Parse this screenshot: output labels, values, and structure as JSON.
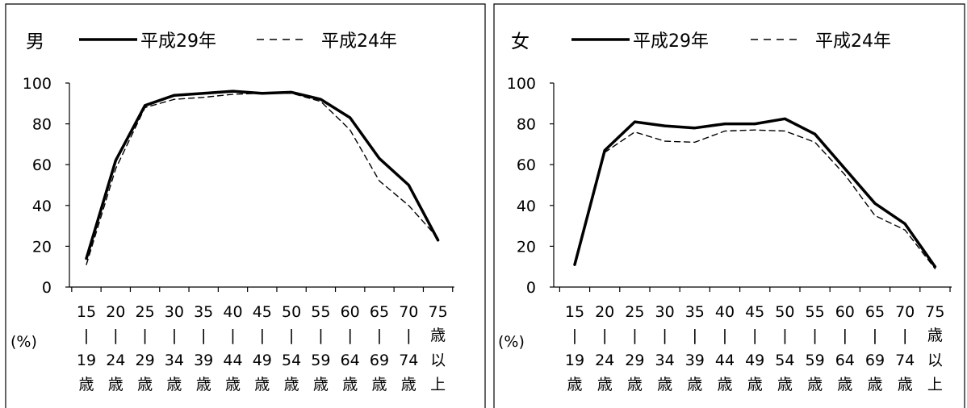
{
  "chart_data": [
    {
      "type": "line",
      "title": "男",
      "y_unit": "(%)",
      "ylim": [
        0,
        100
      ],
      "yticks": [
        0,
        20,
        40,
        60,
        80,
        100
      ],
      "grid": false,
      "legend_position": "top",
      "categories": [
        [
          "15",
          "|",
          "19",
          "歳"
        ],
        [
          "20",
          "|",
          "24",
          "歳"
        ],
        [
          "25",
          "|",
          "29",
          "歳"
        ],
        [
          "30",
          "|",
          "34",
          "歳"
        ],
        [
          "35",
          "|",
          "39",
          "歳"
        ],
        [
          "40",
          "|",
          "44",
          "歳"
        ],
        [
          "45",
          "|",
          "49",
          "歳"
        ],
        [
          "50",
          "|",
          "54",
          "歳"
        ],
        [
          "55",
          "|",
          "59",
          "歳"
        ],
        [
          "60",
          "|",
          "64",
          "歳"
        ],
        [
          "65",
          "|",
          "69",
          "歳"
        ],
        [
          "70",
          "|",
          "74",
          "歳"
        ],
        [
          "75",
          "歳",
          "以",
          "上"
        ]
      ],
      "series": [
        {
          "name": "平成29年",
          "style": "solid",
          "color": "#000000",
          "values": [
            14,
            62,
            89,
            94,
            95,
            96,
            95,
            95.5,
            92,
            83,
            63,
            50,
            23
          ]
        },
        {
          "name": "平成24年",
          "style": "dashed",
          "color": "#000000",
          "values": [
            11,
            58,
            88,
            92,
            93,
            94.5,
            95,
            95,
            91,
            77,
            52,
            40,
            24
          ]
        }
      ]
    },
    {
      "type": "line",
      "title": "女",
      "y_unit": "(%)",
      "ylim": [
        0,
        100
      ],
      "yticks": [
        0,
        20,
        40,
        60,
        80,
        100
      ],
      "grid": false,
      "legend_position": "top",
      "categories": [
        [
          "15",
          "|",
          "19",
          "歳"
        ],
        [
          "20",
          "|",
          "24",
          "歳"
        ],
        [
          "25",
          "|",
          "29",
          "歳"
        ],
        [
          "30",
          "|",
          "34",
          "歳"
        ],
        [
          "35",
          "|",
          "39",
          "歳"
        ],
        [
          "40",
          "|",
          "44",
          "歳"
        ],
        [
          "45",
          "|",
          "49",
          "歳"
        ],
        [
          "50",
          "|",
          "54",
          "歳"
        ],
        [
          "55",
          "|",
          "59",
          "歳"
        ],
        [
          "60",
          "|",
          "64",
          "歳"
        ],
        [
          "65",
          "|",
          "69",
          "歳"
        ],
        [
          "70",
          "|",
          "74",
          "歳"
        ],
        [
          "75",
          "歳",
          "以",
          "上"
        ]
      ],
      "series": [
        {
          "name": "平成29年",
          "style": "solid",
          "color": "#000000",
          "values": [
            11,
            67,
            81,
            79,
            78,
            80,
            80,
            82.5,
            75,
            58,
            41,
            31,
            10
          ]
        },
        {
          "name": "平成24年",
          "style": "dashed",
          "color": "#000000",
          "values": [
            11,
            66,
            76,
            71.5,
            71,
            76.5,
            77,
            76.5,
            71,
            55,
            35,
            28,
            9
          ]
        }
      ]
    }
  ]
}
